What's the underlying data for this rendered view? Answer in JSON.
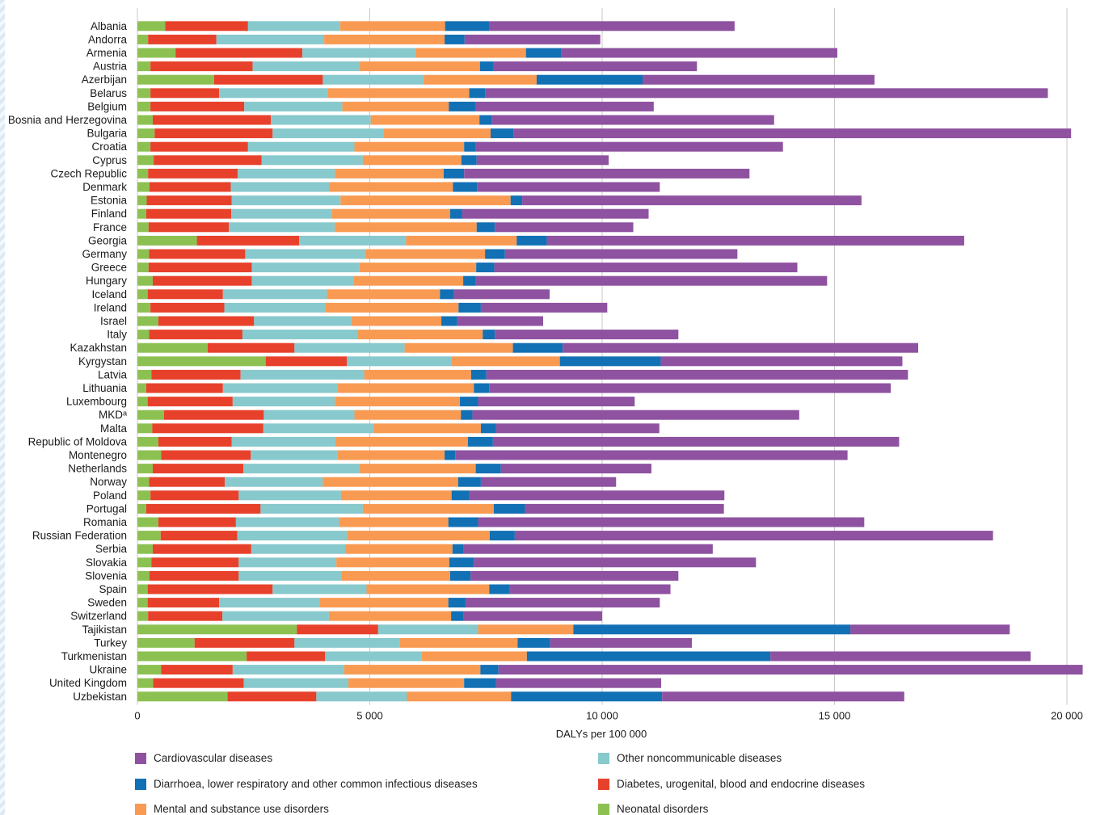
{
  "chart_data": {
    "type": "bar",
    "orientation": "horizontal",
    "stacked": true,
    "xlabel": "DALYs per 100 000",
    "xlim": [
      0,
      20000
    ],
    "x_ticks": [
      0,
      5000,
      10000,
      15000,
      20000
    ],
    "x_tick_labels": [
      "0",
      "5 000",
      "10 000",
      "15 000",
      "20 000"
    ],
    "grid": "vertical",
    "legend_position": "bottom",
    "categories": [
      "Albania",
      "Andorra",
      "Armenia",
      "Austria",
      "Azerbijan",
      "Belarus",
      "Belgium",
      "Bosnia and Herzegovina",
      "Bulgaria",
      "Croatia",
      "Cyprus",
      "Czech Republic",
      "Denmark",
      "Estonia",
      "Finland",
      "France",
      "Georgia",
      "Germany",
      "Greece",
      "Hungary",
      "Iceland",
      "Ireland",
      "Israel",
      "Italy",
      "Kazakhstan",
      "Kyrgystan",
      "Latvia",
      "Lithuania",
      "Luxembourg",
      "MKDᵃ",
      "Malta",
      "Republic of Moldova",
      "Montenegro",
      "Netherlands",
      "Norway",
      "Poland",
      "Portugal",
      "Romania",
      "Russian Federation",
      "Serbia",
      "Slovakia",
      "Slovenia",
      "Spain",
      "Sweden",
      "Switzerland",
      "Tajikistan",
      "Turkey",
      "Turkmenistan",
      "Ukraine",
      "United Kingdom",
      "Uzbekistan"
    ],
    "series": [
      {
        "name": "Neonatal disorders",
        "color": "#8cc152",
        "values": [
          600,
          230,
          820,
          280,
          1650,
          280,
          280,
          330,
          370,
          280,
          350,
          230,
          260,
          200,
          190,
          240,
          1280,
          250,
          240,
          330,
          220,
          280,
          450,
          250,
          1510,
          2760,
          300,
          190,
          220,
          570,
          320,
          450,
          510,
          330,
          250,
          280,
          190,
          450,
          500,
          330,
          300,
          260,
          220,
          220,
          230,
          3430,
          1230,
          2350,
          510,
          340,
          1940
        ]
      },
      {
        "name": "Diabetes, urogenital, blood and endocrine diseases",
        "color": "#e8412b",
        "values": [
          1780,
          1470,
          2730,
          2200,
          2340,
          1480,
          2020,
          2540,
          2540,
          2100,
          2320,
          1930,
          1750,
          1830,
          1830,
          1730,
          2200,
          2070,
          2220,
          2130,
          1620,
          1590,
          2060,
          2010,
          1870,
          1750,
          1920,
          1650,
          1830,
          2150,
          2390,
          1580,
          1930,
          1950,
          1630,
          1900,
          2460,
          1670,
          1650,
          2120,
          1880,
          1920,
          2690,
          1540,
          1600,
          1750,
          2150,
          1690,
          1540,
          1950,
          1910
        ]
      },
      {
        "name": "Other noncommunicable diseases",
        "color": "#87c9cc",
        "values": [
          1980,
          2320,
          2430,
          2290,
          2170,
          2330,
          2110,
          2150,
          2380,
          2290,
          2180,
          2090,
          2120,
          2340,
          2160,
          2280,
          2300,
          2580,
          2320,
          2190,
          2240,
          2180,
          2100,
          2480,
          2370,
          2240,
          2660,
          2460,
          2200,
          1950,
          2370,
          2230,
          1870,
          2490,
          2110,
          2200,
          2200,
          2220,
          2360,
          2020,
          2100,
          2220,
          2020,
          2170,
          2290,
          2150,
          2260,
          2070,
          2400,
          2250,
          1950
        ]
      },
      {
        "name": "Mental and substance use disorders",
        "color": "#f99a52",
        "values": [
          2260,
          2590,
          2380,
          2600,
          2430,
          3050,
          2290,
          2340,
          2310,
          2360,
          2120,
          2340,
          2660,
          3660,
          2550,
          3050,
          2380,
          2580,
          2510,
          2360,
          2430,
          2860,
          1930,
          2690,
          2330,
          2340,
          2300,
          2940,
          2690,
          2290,
          2310,
          2850,
          2300,
          2510,
          2910,
          2380,
          2820,
          2350,
          3070,
          2310,
          2430,
          2330,
          2640,
          2760,
          2630,
          2050,
          2540,
          2270,
          2930,
          2490,
          2240
        ]
      },
      {
        "name": "Diarrhoea, lower respiratory and other common infectious diseases",
        "color": "#1270b5",
        "values": [
          960,
          430,
          760,
          290,
          2280,
          340,
          570,
          270,
          500,
          240,
          330,
          440,
          520,
          250,
          260,
          390,
          650,
          430,
          390,
          260,
          300,
          480,
          340,
          260,
          1070,
          2170,
          330,
          330,
          390,
          250,
          330,
          540,
          230,
          540,
          490,
          380,
          670,
          640,
          540,
          240,
          530,
          440,
          440,
          370,
          270,
          5960,
          700,
          5240,
          390,
          690,
          3250
        ]
      },
      {
        "name": "Cardiovascular diseases",
        "color": "#8e52a0",
        "values": [
          5270,
          2920,
          5940,
          4380,
          4990,
          12110,
          3840,
          6070,
          11990,
          6620,
          2840,
          6140,
          3930,
          7300,
          4010,
          2980,
          8980,
          5000,
          6520,
          7570,
          2060,
          2720,
          1850,
          3950,
          7650,
          5200,
          9070,
          8640,
          3370,
          7030,
          3510,
          8740,
          8440,
          3240,
          2910,
          5490,
          4280,
          8310,
          10290,
          5360,
          6070,
          4470,
          3460,
          4180,
          2980,
          3430,
          3050,
          5600,
          12570,
          3550,
          5210
        ]
      }
    ]
  }
}
